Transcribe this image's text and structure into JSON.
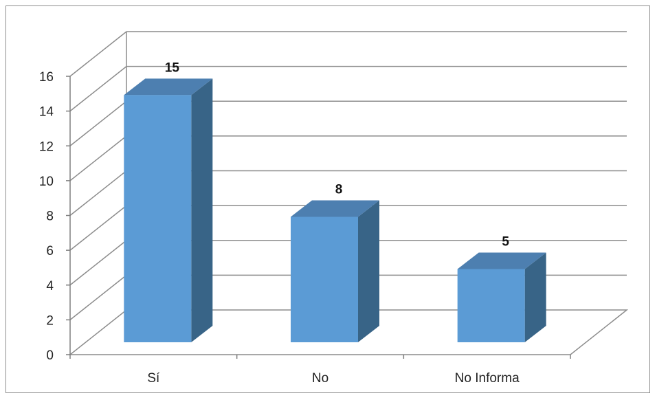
{
  "chart_data": {
    "type": "bar",
    "categories": [
      "Sí",
      "No",
      "No Informa"
    ],
    "values": [
      15,
      8,
      5
    ],
    "data_labels": [
      "15",
      "8",
      "5"
    ],
    "title": "",
    "xlabel": "",
    "ylabel": "",
    "ylim": [
      0,
      16
    ],
    "yticks": [
      "0",
      "2",
      "4",
      "6",
      "8",
      "10",
      "12",
      "14",
      "16"
    ],
    "grid": true,
    "legend": "none",
    "style": "3d-column",
    "colors": {
      "front": "#5b9bd5",
      "side": "#386487",
      "top": "#4d7fb0",
      "grid": "#8c8c8c",
      "axis": "#7f7f7f"
    }
  }
}
